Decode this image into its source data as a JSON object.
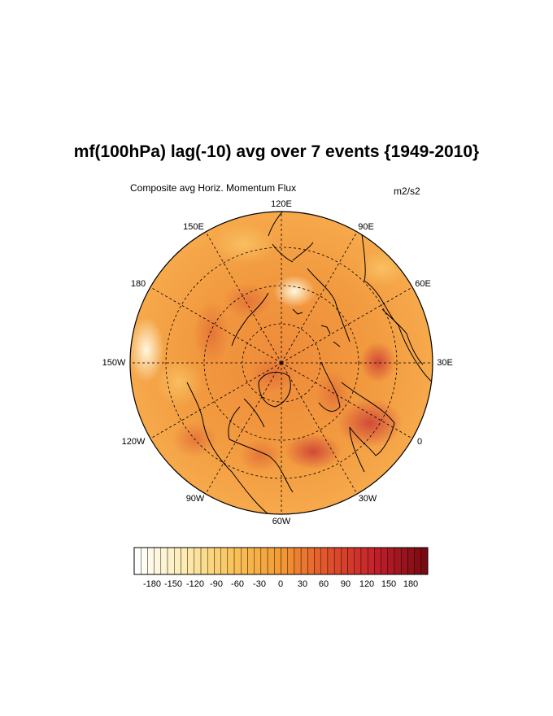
{
  "title": "mf(100hPa) lag(-10) avg over 7 events {1949-2010}",
  "subtitle_left": "Composite avg Horiz. Momentum Flux",
  "units": "m2/s2",
  "projection": "north-polar-stereographic",
  "longitude_labels": [
    {
      "text": "120E",
      "lon": 120
    },
    {
      "text": "90E",
      "lon": 90
    },
    {
      "text": "60E",
      "lon": 60
    },
    {
      "text": "30E",
      "lon": 30
    },
    {
      "text": "0",
      "lon": 0
    },
    {
      "text": "30W",
      "lon": -30
    },
    {
      "text": "60W",
      "lon": -60
    },
    {
      "text": "90W",
      "lon": -90
    },
    {
      "text": "120W",
      "lon": -120
    },
    {
      "text": "150W",
      "lon": -150
    },
    {
      "text": "180",
      "lon": 180
    },
    {
      "text": "150E",
      "lon": 150
    }
  ],
  "colorbar": {
    "labels": [
      "-180",
      "-150",
      "-120",
      "-90",
      "-60",
      "-30",
      "0",
      "30",
      "60",
      "90",
      "120",
      "150",
      "180"
    ],
    "colors": {
      "white": "#ffffff",
      "light_yellow": "#fdebb0",
      "yellow_orange": "#f9c35a",
      "orange": "#f39a33",
      "red_orange": "#e0502b",
      "red": "#c21f2b",
      "dark_red": "#7a0a12"
    }
  },
  "map_colors": {
    "base": "#f29a3f",
    "high_anomaly": "#d6473a",
    "low_anomaly": "#fff3cf",
    "coastline": "#000000"
  }
}
